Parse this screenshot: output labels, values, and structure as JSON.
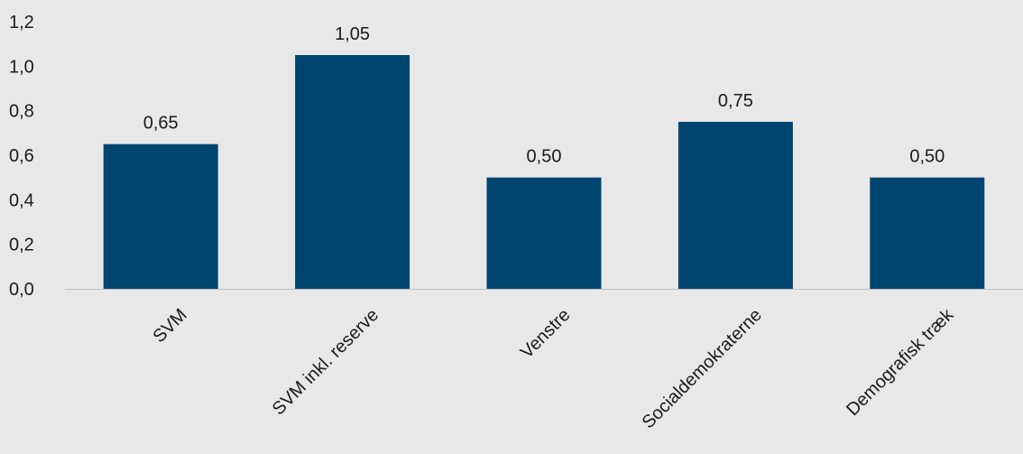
{
  "colors": {
    "background": "#e8e8e8",
    "bar": "#004570",
    "axis": "#bfbfbf",
    "text": "#1a1a1a"
  },
  "chart_data": {
    "type": "bar",
    "title": "",
    "xlabel": "",
    "ylabel": "",
    "categories": [
      "SVM",
      "SVM inkl. reserve",
      "Venstre",
      "Socialdemokraterne",
      "Demografisk træk"
    ],
    "values": [
      0.65,
      1.05,
      0.5,
      0.75,
      0.5
    ],
    "value_labels": [
      "0,65",
      "1,05",
      "0,50",
      "0,75",
      "0,50"
    ],
    "ylim": [
      0,
      1.2
    ],
    "yticks": [
      0.0,
      0.2,
      0.4,
      0.6,
      0.8,
      1.0,
      1.2
    ],
    "ytick_labels": [
      "0,0",
      "0,2",
      "0,4",
      "0,6",
      "0,8",
      "1,0",
      "1,2"
    ],
    "grid": false,
    "legend": "none"
  }
}
